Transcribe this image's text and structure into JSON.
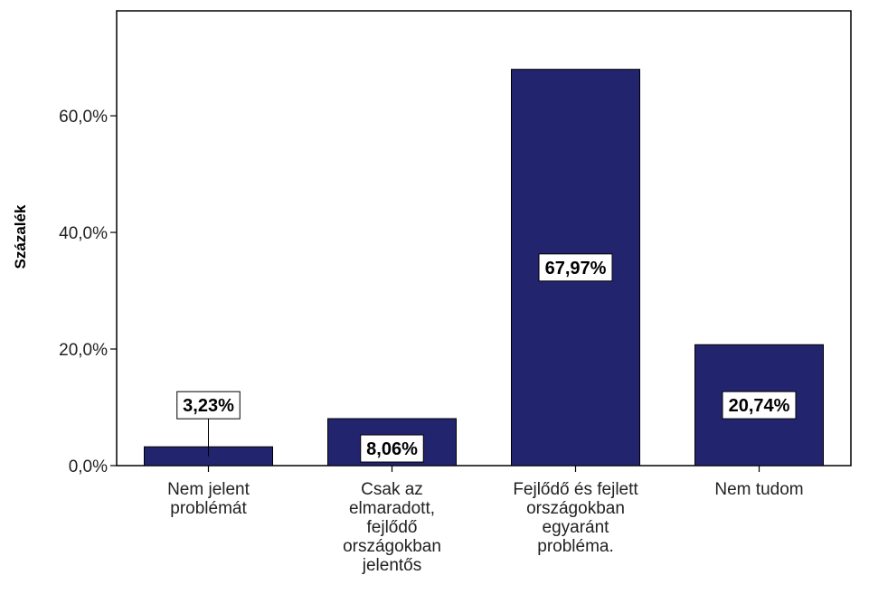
{
  "chart_data": {
    "type": "bar",
    "title": "",
    "xlabel": "",
    "ylabel": "Százalék",
    "ylim": [
      0,
      78
    ],
    "yticks": [
      {
        "value": 0,
        "label": "0,0%"
      },
      {
        "value": 20,
        "label": "20,0%"
      },
      {
        "value": 40,
        "label": "40,0%"
      },
      {
        "value": 60,
        "label": "60,0%"
      }
    ],
    "categories": [
      [
        "Nem jelent",
        "problémát"
      ],
      [
        "Csak az",
        "elmaradott,",
        "fejlődő",
        "országokban",
        "jelentős"
      ],
      [
        "Fejlődő és fejlett",
        "országokban",
        "egyaránt",
        "probléma."
      ],
      [
        "Nem tudom"
      ]
    ],
    "values": [
      3.23,
      8.06,
      67.97,
      20.74
    ],
    "data_labels": [
      "3,23%",
      "8,06%",
      "67,97%",
      "20,74%"
    ],
    "bar_color": "#23246e",
    "grid": false,
    "legend": "none"
  }
}
